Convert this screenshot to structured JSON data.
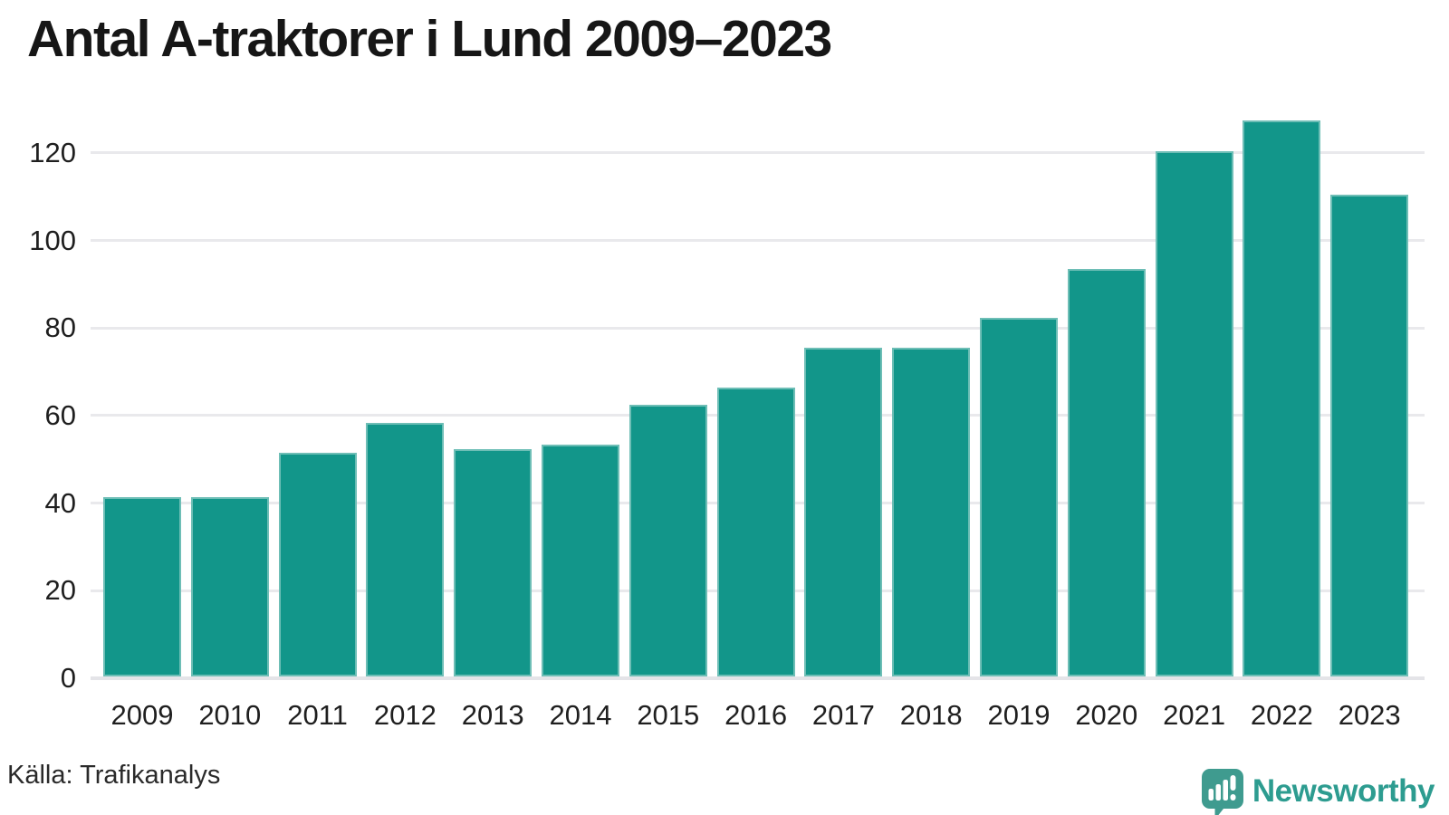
{
  "title": "Antal A-traktorer i Lund 2009–2023",
  "source": "Källa: Trafikanalys",
  "brand": {
    "name": "Newsworthy",
    "icon": "newsworthy-logo-icon",
    "wordmark_color": "#2d9c90",
    "icon_color": "#3f9b8f"
  },
  "colors": {
    "bar": "#12968a",
    "gridline": "#e9e9ec",
    "baseline": "#e4e4e8",
    "text": "#1f1f1f"
  },
  "chart_data": {
    "type": "bar",
    "title": "Antal A-traktorer i Lund 2009–2023",
    "categories": [
      "2009",
      "2010",
      "2011",
      "2012",
      "2013",
      "2014",
      "2015",
      "2016",
      "2017",
      "2018",
      "2019",
      "2020",
      "2021",
      "2022",
      "2023"
    ],
    "values": [
      41,
      41,
      51,
      58,
      52,
      53,
      62,
      66,
      75,
      75,
      82,
      93,
      120,
      127,
      110
    ],
    "xlabel": "",
    "ylabel": "",
    "ylim": [
      0,
      128
    ],
    "yticks": [
      0,
      20,
      40,
      60,
      80,
      100,
      120
    ],
    "grid": true,
    "legend_position": "none",
    "bar_color": "#12968a"
  }
}
